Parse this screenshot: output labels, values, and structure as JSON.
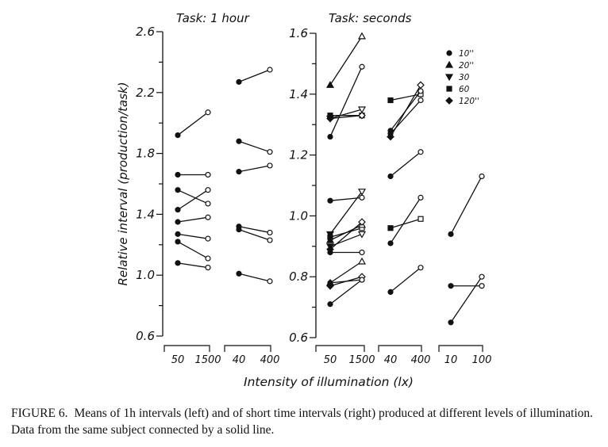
{
  "chart_data": {
    "type": "scatter",
    "ylabel": "Relative interval (production/task)",
    "xlabel": "Intensity of illumination (lx)",
    "panels": [
      {
        "title": "Task: 1 hour",
        "ylim": [
          0.6,
          2.6
        ],
        "yticks": [
          "0.6",
          "1.0",
          "1.4",
          "1.8",
          "2.2",
          "2.6"
        ],
        "ytick_values": [
          0.6,
          1.0,
          1.4,
          1.8,
          2.2,
          2.6
        ],
        "groups": [
          {
            "x_labels": [
              "50",
              "1500"
            ],
            "pairs": [
              {
                "marker": "dot",
                "y": [
                  1.92,
                  2.07
                ]
              },
              {
                "marker": "dot",
                "y": [
                  1.66,
                  1.66
                ]
              },
              {
                "marker": "dot",
                "y": [
                  1.56,
                  1.47
                ]
              },
              {
                "marker": "dot",
                "y": [
                  1.43,
                  1.56
                ]
              },
              {
                "marker": "dot",
                "y": [
                  1.35,
                  1.38
                ]
              },
              {
                "marker": "dot",
                "y": [
                  1.27,
                  1.24
                ]
              },
              {
                "marker": "dot",
                "y": [
                  1.22,
                  1.11
                ]
              },
              {
                "marker": "dot",
                "y": [
                  1.08,
                  1.05
                ]
              }
            ]
          },
          {
            "x_labels": [
              "40",
              "400"
            ],
            "pairs": [
              {
                "marker": "dot",
                "y": [
                  2.27,
                  2.35
                ]
              },
              {
                "marker": "dot",
                "y": [
                  1.88,
                  1.81
                ]
              },
              {
                "marker": "dot",
                "y": [
                  1.68,
                  1.72
                ]
              },
              {
                "marker": "dot",
                "y": [
                  1.32,
                  1.28
                ]
              },
              {
                "marker": "dot",
                "y": [
                  1.3,
                  1.23
                ]
              },
              {
                "marker": "dot",
                "y": [
                  1.01,
                  0.96
                ]
              }
            ]
          }
        ]
      },
      {
        "title": "Task: seconds",
        "ylim": [
          0.6,
          1.6
        ],
        "yticks": [
          "0.6",
          "0.8",
          "1.0",
          "1.2",
          "1.4",
          "1.6"
        ],
        "ytick_values": [
          0.6,
          0.8,
          1.0,
          1.2,
          1.4,
          1.6
        ],
        "legend": [
          {
            "marker": "dot",
            "label": "10''"
          },
          {
            "marker": "triangle-up",
            "label": "20''"
          },
          {
            "marker": "triangle-down",
            "label": "30"
          },
          {
            "marker": "square",
            "label": "60"
          },
          {
            "marker": "diamond",
            "label": "120''"
          }
        ],
        "groups": [
          {
            "x_labels": [
              "50",
              "1500"
            ],
            "pairs": [
              {
                "marker": "triangle-up",
                "y": [
                  1.43,
                  1.59
                ]
              },
              {
                "marker": "dot",
                "y": [
                  1.26,
                  1.49
                ]
              },
              {
                "marker": "triangle-down",
                "y": [
                  1.32,
                  1.35
                ]
              },
              {
                "marker": "square",
                "y": [
                  1.33,
                  1.33
                ]
              },
              {
                "marker": "diamond",
                "y": [
                  1.32,
                  1.33
                ]
              },
              {
                "marker": "dot",
                "y": [
                  1.05,
                  1.06
                ]
              },
              {
                "marker": "triangle-down",
                "y": [
                  0.94,
                  1.08
                ]
              },
              {
                "marker": "square",
                "y": [
                  0.93,
                  0.96
                ]
              },
              {
                "marker": "triangle-up",
                "y": [
                  0.92,
                  0.97
                ]
              },
              {
                "marker": "triangle-down",
                "y": [
                  0.9,
                  0.94
                ]
              },
              {
                "marker": "diamond",
                "y": [
                  0.89,
                  0.98
                ]
              },
              {
                "marker": "dot",
                "y": [
                  0.88,
                  0.88
                ]
              },
              {
                "marker": "triangle-up",
                "y": [
                  0.78,
                  0.85
                ]
              },
              {
                "marker": "diamond",
                "y": [
                  0.77,
                  0.8
                ]
              },
              {
                "marker": "dot",
                "y": [
                  0.78,
                  0.79
                ]
              },
              {
                "marker": "dot",
                "y": [
                  0.71,
                  0.79
                ]
              }
            ]
          },
          {
            "x_labels": [
              "40",
              "400"
            ],
            "pairs": [
              {
                "marker": "square",
                "y": [
                  1.38,
                  1.4
                ]
              },
              {
                "marker": "dot",
                "y": [
                  1.28,
                  1.41
                ]
              },
              {
                "marker": "diamond",
                "y": [
                  1.26,
                  1.43
                ]
              },
              {
                "marker": "dot",
                "y": [
                  1.27,
                  1.38
                ]
              },
              {
                "marker": "dot",
                "y": [
                  1.13,
                  1.21
                ]
              },
              {
                "marker": "dot",
                "y": [
                  0.91,
                  1.06
                ]
              },
              {
                "marker": "square",
                "y": [
                  0.96,
                  0.99
                ]
              },
              {
                "marker": "dot",
                "y": [
                  0.75,
                  0.83
                ]
              }
            ]
          },
          {
            "x_labels": [
              "10",
              "100"
            ],
            "pairs": [
              {
                "marker": "dot",
                "y": [
                  0.94,
                  1.13
                ]
              },
              {
                "marker": "dot",
                "y": [
                  0.77,
                  0.77
                ]
              },
              {
                "marker": "dot",
                "y": [
                  0.65,
                  0.8
                ]
              }
            ]
          }
        ]
      }
    ]
  },
  "caption": {
    "label": "FIGURE 6.",
    "text": "Means of 1h intervals (left) and of short time intervals (right) produced at different levels of illumination. Data from the same subject connected by a solid line."
  }
}
